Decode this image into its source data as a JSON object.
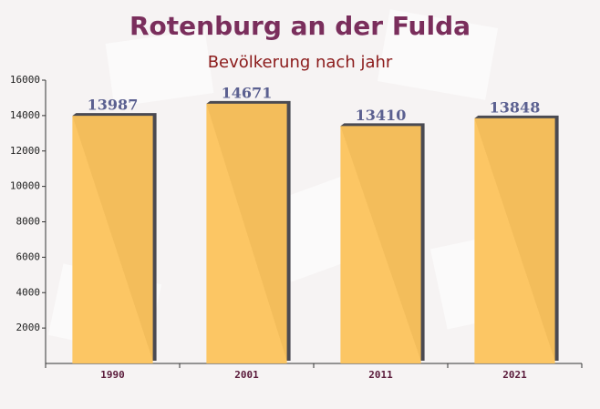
{
  "chart_data": {
    "type": "bar",
    "title": "Rotenburg an der Fulda",
    "subtitle": "Bevölkerung nach jahr",
    "categories": [
      "1990",
      "2001",
      "2011",
      "2021"
    ],
    "values": [
      13987,
      14671,
      13410,
      13848
    ],
    "color": "#fcc35c",
    "ylim": [
      0,
      16000
    ],
    "yticks": [
      2000,
      4000,
      6000,
      8000,
      10000,
      12000,
      14000,
      16000
    ],
    "grid": false
  }
}
